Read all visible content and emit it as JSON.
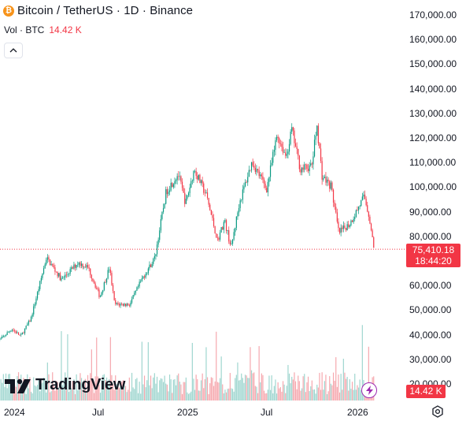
{
  "header": {
    "title": "Bitcoin / TetherUS · 1D · Binance",
    "icon": "bitcoin-icon"
  },
  "volume": {
    "label": "Vol · BTC",
    "value": "14.42 K"
  },
  "collapse_icon": "chevron-up-icon",
  "price_axis": [
    "170,000.00",
    "160,000.00",
    "150,000.00",
    "140,000.00",
    "130,000.00",
    "120,000.00",
    "110,000.00",
    "100,000.00",
    "90,000.00",
    "80,000.00",
    "70,000.00",
    "60,000.00",
    "50,000.00",
    "40,000.00",
    "30,000.00",
    "20,000.00"
  ],
  "time_axis": [
    "2024",
    "Jul",
    "2025",
    "Jul",
    "2026"
  ],
  "last_price": {
    "price": "75,410.18",
    "countdown": "18:44:20"
  },
  "volume_tag": "14.42 K",
  "brand": "TradingView",
  "colors": {
    "up": "#089981",
    "down": "#f23645",
    "up_volume": "#9fd6cf",
    "down_volume": "#f6a8ae",
    "bolt": "#9c27b0"
  },
  "chart_data": {
    "type": "candlestick",
    "symbol": "BTC/USDT",
    "interval": "1D",
    "exchange": "Binance",
    "ylim": [
      20000,
      170000
    ],
    "x_range": [
      "2024-01",
      "2026-01"
    ],
    "price_path": [
      {
        "x": "2023-12-01",
        "y": 37500
      },
      {
        "x": "2024-01-01",
        "y": 43000
      },
      {
        "x": "2024-01-20",
        "y": 40000
      },
      {
        "x": "2024-02-10",
        "y": 47000
      },
      {
        "x": "2024-03-01",
        "y": 62000
      },
      {
        "x": "2024-03-14",
        "y": 72000
      },
      {
        "x": "2024-04-15",
        "y": 63000
      },
      {
        "x": "2024-05-20",
        "y": 70000
      },
      {
        "x": "2024-06-10",
        "y": 68000
      },
      {
        "x": "2024-07-05",
        "y": 56000
      },
      {
        "x": "2024-07-25",
        "y": 68000
      },
      {
        "x": "2024-08-05",
        "y": 53000
      },
      {
        "x": "2024-09-06",
        "y": 53000
      },
      {
        "x": "2024-10-01",
        "y": 63000
      },
      {
        "x": "2024-10-29",
        "y": 72000
      },
      {
        "x": "2024-11-12",
        "y": 88000
      },
      {
        "x": "2024-11-22",
        "y": 99000
      },
      {
        "x": "2024-12-17",
        "y": 106000
      },
      {
        "x": "2025-01-02",
        "y": 94000
      },
      {
        "x": "2025-01-20",
        "y": 108000
      },
      {
        "x": "2025-02-15",
        "y": 97000
      },
      {
        "x": "2025-03-10",
        "y": 79000
      },
      {
        "x": "2025-03-25",
        "y": 87000
      },
      {
        "x": "2025-04-08",
        "y": 76000
      },
      {
        "x": "2025-04-25",
        "y": 94000
      },
      {
        "x": "2025-05-22",
        "y": 111000
      },
      {
        "x": "2025-06-22",
        "y": 100000
      },
      {
        "x": "2025-07-14",
        "y": 122000
      },
      {
        "x": "2025-08-02",
        "y": 113000
      },
      {
        "x": "2025-08-14",
        "y": 124000
      },
      {
        "x": "2025-09-01",
        "y": 108000
      },
      {
        "x": "2025-09-25",
        "y": 109000
      },
      {
        "x": "2025-10-06",
        "y": 126000
      },
      {
        "x": "2025-10-17",
        "y": 105000
      },
      {
        "x": "2025-11-05",
        "y": 101000
      },
      {
        "x": "2025-11-21",
        "y": 82000
      },
      {
        "x": "2025-12-15",
        "y": 86000
      },
      {
        "x": "2026-01-14",
        "y": 97000
      },
      {
        "x": "2026-01-25",
        "y": 88000
      },
      {
        "x": "2026-02-03",
        "y": 75410
      }
    ],
    "last": 75410.18
  }
}
